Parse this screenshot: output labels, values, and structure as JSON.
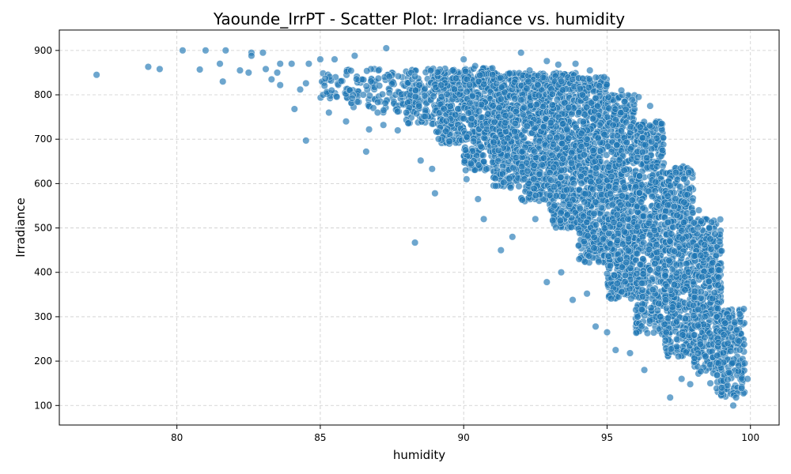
{
  "chart_data": {
    "type": "scatter",
    "title": "Yaounde_IrrPT - Scatter Plot: Irradiance vs. humidity",
    "xlabel": "humidity",
    "ylabel": "Irradiance",
    "xlim": [
      75.9,
      101.0
    ],
    "ylim": [
      56,
      946
    ],
    "xticks": [
      80,
      85,
      90,
      95,
      100
    ],
    "yticks": [
      100,
      200,
      300,
      400,
      500,
      600,
      700,
      800,
      900
    ],
    "grid": true,
    "marker_color": "#1f77b4",
    "outlier_points": [
      [
        77.2,
        845
      ],
      [
        79.0,
        863
      ],
      [
        79.4,
        858
      ],
      [
        80.2,
        900
      ],
      [
        80.8,
        857
      ],
      [
        81.0,
        900
      ],
      [
        81.5,
        870
      ],
      [
        81.6,
        830
      ],
      [
        81.7,
        900
      ],
      [
        82.2,
        855
      ],
      [
        82.5,
        850
      ],
      [
        82.6,
        895
      ],
      [
        82.6,
        888
      ],
      [
        83.0,
        895
      ],
      [
        83.1,
        858
      ],
      [
        83.3,
        835
      ],
      [
        83.5,
        850
      ],
      [
        83.6,
        870
      ],
      [
        83.6,
        822
      ],
      [
        84.0,
        870
      ],
      [
        84.1,
        768
      ],
      [
        84.3,
        812
      ],
      [
        84.5,
        826
      ],
      [
        84.5,
        697
      ],
      [
        84.6,
        870
      ],
      [
        85.0,
        880
      ],
      [
        85.3,
        760
      ],
      [
        85.5,
        880
      ],
      [
        85.9,
        740
      ],
      [
        86.2,
        888
      ],
      [
        86.5,
        800
      ],
      [
        86.6,
        672
      ],
      [
        86.7,
        722
      ],
      [
        87.0,
        760
      ],
      [
        87.2,
        732
      ],
      [
        87.3,
        905
      ],
      [
        87.5,
        825
      ],
      [
        87.7,
        720
      ],
      [
        88.0,
        760
      ],
      [
        88.3,
        467
      ],
      [
        88.5,
        652
      ],
      [
        88.9,
        633
      ],
      [
        89.0,
        578
      ],
      [
        89.5,
        695
      ],
      [
        90.1,
        610
      ],
      [
        90.5,
        565
      ],
      [
        90.7,
        520
      ],
      [
        91.3,
        450
      ],
      [
        91.7,
        480
      ],
      [
        92.0,
        895
      ],
      [
        92.5,
        520
      ],
      [
        92.9,
        378
      ],
      [
        93.4,
        400
      ],
      [
        93.8,
        338
      ],
      [
        94.3,
        352
      ],
      [
        94.6,
        278
      ],
      [
        95.0,
        265
      ],
      [
        95.3,
        225
      ],
      [
        95.8,
        218
      ],
      [
        96.3,
        180
      ],
      [
        97.2,
        118
      ],
      [
        97.6,
        160
      ],
      [
        97.9,
        148
      ],
      [
        98.6,
        150
      ],
      [
        99.0,
        140
      ],
      [
        99.4,
        100
      ],
      [
        99.5,
        118
      ],
      [
        99.9,
        160
      ],
      [
        99.8,
        195
      ],
      [
        99.6,
        245
      ],
      [
        99.3,
        275
      ],
      [
        98.9,
        405
      ],
      [
        98.6,
        475
      ],
      [
        98.2,
        540
      ],
      [
        97.8,
        575
      ],
      [
        97.4,
        625
      ],
      [
        96.9,
        735
      ],
      [
        96.5,
        775
      ],
      [
        96.1,
        795
      ],
      [
        95.5,
        810
      ],
      [
        94.9,
        840
      ],
      [
        94.4,
        855
      ],
      [
        93.9,
        870
      ],
      [
        93.3,
        868
      ],
      [
        92.9,
        876
      ],
      [
        92.3,
        855
      ],
      [
        91.6,
        848
      ],
      [
        91.0,
        860
      ],
      [
        90.4,
        865
      ],
      [
        90.0,
        880
      ]
    ],
    "density_bands": [
      {
        "x": 85.5,
        "y_min": 790,
        "y_max": 860,
        "count": 40
      },
      {
        "x": 86.5,
        "y_min": 770,
        "y_max": 860,
        "count": 45
      },
      {
        "x": 87.5,
        "y_min": 760,
        "y_max": 860,
        "count": 55
      },
      {
        "x": 88.5,
        "y_min": 730,
        "y_max": 860,
        "count": 120
      },
      {
        "x": 89.5,
        "y_min": 690,
        "y_max": 860,
        "count": 240
      },
      {
        "x": 90.5,
        "y_min": 630,
        "y_max": 860,
        "count": 330
      },
      {
        "x": 91.5,
        "y_min": 590,
        "y_max": 850,
        "count": 380
      },
      {
        "x": 92.5,
        "y_min": 560,
        "y_max": 850,
        "count": 430
      },
      {
        "x": 93.5,
        "y_min": 500,
        "y_max": 850,
        "count": 520
      },
      {
        "x": 94.5,
        "y_min": 420,
        "y_max": 840,
        "count": 600
      },
      {
        "x": 95.5,
        "y_min": 340,
        "y_max": 800,
        "count": 620
      },
      {
        "x": 96.5,
        "y_min": 260,
        "y_max": 740,
        "count": 580
      },
      {
        "x": 97.5,
        "y_min": 210,
        "y_max": 640,
        "count": 520
      },
      {
        "x": 98.5,
        "y_min": 170,
        "y_max": 520,
        "count": 430
      },
      {
        "x": 99.3,
        "y_min": 120,
        "y_max": 320,
        "count": 200
      }
    ]
  }
}
